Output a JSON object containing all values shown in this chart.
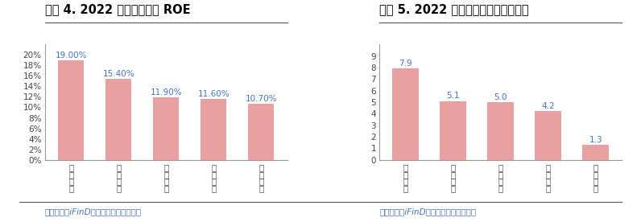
{
  "chart1": {
    "title": "图表 4. 2022 年供应链企业 ROE",
    "categories": [
      "浙商中拓",
      "厦门象屿",
      "厦门国贸",
      "物产中大",
      "建发股份"
    ],
    "cat_lines": [
      "浙\n商\n中\n拓",
      "厦\n门\n象\n屿",
      "厦\n门\n国\n贸",
      "物\n产\n中\n大",
      "建\n发\n股\n份"
    ],
    "values": [
      0.19,
      0.154,
      0.119,
      0.116,
      0.107
    ],
    "labels": [
      "19.00%",
      "15.40%",
      "11.90%",
      "11.60%",
      "10.70%"
    ],
    "ylim": [
      0,
      0.22
    ],
    "yticks": [
      0,
      0.02,
      0.04,
      0.06,
      0.08,
      0.1,
      0.12,
      0.14,
      0.16,
      0.18,
      0.2
    ],
    "yticklabels": [
      "0%",
      "2%",
      "4%",
      "6%",
      "8%",
      "10%",
      "12%",
      "14%",
      "16%",
      "18%",
      "20%"
    ],
    "bar_color": "#E8A0A0",
    "label_color": "#4472C4",
    "source": "资料来源：iFinD，公司公告，中銀证券"
  },
  "chart2": {
    "title": "图表 5. 2022 年供应链企业资产周转率",
    "categories": [
      "浙商中拓",
      "厦门象屿",
      "厦门国贸",
      "物产中大",
      "建发股份"
    ],
    "cat_lines": [
      "浙\n商\n中\n拓",
      "厦\n门\n象\n屿",
      "厦\n门\n国\n贸",
      "物\n产\n中\n大",
      "建\n发\n股\n份"
    ],
    "values": [
      7.9,
      5.1,
      5.0,
      4.2,
      1.3
    ],
    "labels": [
      "7.9",
      "5.1",
      "5.0",
      "4.2",
      "1.3"
    ],
    "ylim": [
      0,
      10.0
    ],
    "yticks": [
      0,
      1,
      2,
      3,
      4,
      5,
      6,
      7,
      8,
      9
    ],
    "yticklabels": [
      "0",
      "1",
      "2",
      "3",
      "4",
      "5",
      "6",
      "7",
      "8",
      "9"
    ],
    "bar_color": "#E8A0A0",
    "label_color": "#4472C4",
    "source": "资料来源：iFinD，公司公告，中銀证券"
  },
  "bg_color": "#FFFFFF",
  "title_fontsize": 10.5,
  "tick_fontsize": 7.5,
  "label_fontsize": 7.5,
  "source_fontsize": 7.5,
  "bar_width": 0.55,
  "title_color": "#000000",
  "source_color": "#4472C4",
  "axis_color": "#999999"
}
